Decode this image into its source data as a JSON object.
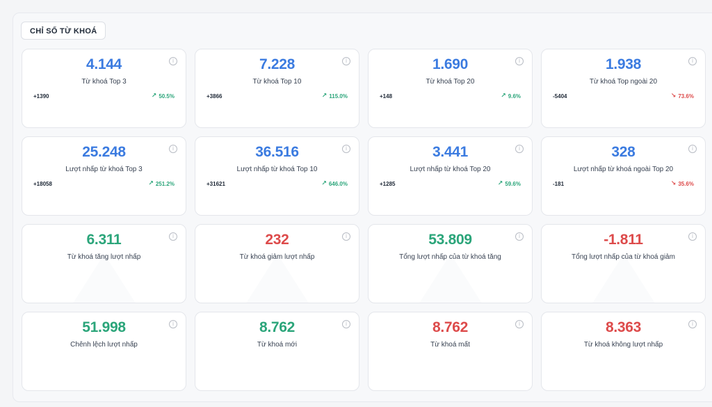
{
  "section": {
    "title": "CHỈ SỐ TỪ KHOÁ"
  },
  "colors": {
    "blue": "#3b7be0",
    "green": "#2ba57a",
    "red": "#dd4b4b"
  },
  "cards": [
    {
      "value": "4.144",
      "label": "Từ khoá Top 3",
      "delta": "+1390",
      "trend": "50.5%",
      "trend_dir": "up",
      "icon": "info-icon"
    },
    {
      "value": "7.228",
      "label": "Từ khoá Top 10",
      "delta": "+3866",
      "trend": "115.0%",
      "trend_dir": "up",
      "icon": "info-icon"
    },
    {
      "value": "1.690",
      "label": "Từ khoá Top 20",
      "delta": "+148",
      "trend": "9.6%",
      "trend_dir": "up",
      "icon": "info-icon"
    },
    {
      "value": "1.938",
      "label": "Từ khoá Top ngoài 20",
      "delta": "-5404",
      "trend": "73.6%",
      "trend_dir": "down",
      "icon": "info-icon"
    },
    {
      "value": "25.248",
      "label": "Lượt nhấp từ khoá Top 3",
      "delta": "+18058",
      "trend": "251.2%",
      "trend_dir": "up",
      "icon": "info-icon"
    },
    {
      "value": "36.516",
      "label": "Lượt nhấp từ khoá Top 10",
      "delta": "+31621",
      "trend": "646.0%",
      "trend_dir": "up",
      "icon": "info-icon"
    },
    {
      "value": "3.441",
      "label": "Lượt nhấp từ khoá Top 20",
      "delta": "+1285",
      "trend": "59.6%",
      "trend_dir": "up",
      "icon": "info-icon"
    },
    {
      "value": "328",
      "label": "Lượt nhấp từ khoá ngoài Top 20",
      "delta": "-181",
      "trend": "35.6%",
      "trend_dir": "down",
      "icon": "info-icon"
    },
    {
      "value": "6.311",
      "label": "Từ khoá tăng lượt nhấp",
      "icon": "info-icon"
    },
    {
      "value": "232",
      "label": "Từ khoá giảm lượt nhấp",
      "icon": "info-icon"
    },
    {
      "value": "53.809",
      "label": "Tổng lượt nhấp của từ khoá tăng",
      "icon": "info-icon"
    },
    {
      "value": "-1.811",
      "label": "Tổng lượt nhấp của từ khoá giảm",
      "icon": "info-icon"
    },
    {
      "value": "51.998",
      "label": "Chênh lệch lượt nhấp",
      "icon": "info-icon"
    },
    {
      "value": "8.762",
      "label": "Từ khoá mới",
      "icon": "info-icon"
    },
    {
      "value": "8.762",
      "label": "Từ khoá mất",
      "icon": "info-icon"
    },
    {
      "value": "8.363",
      "label": "Từ khoá không lượt nhấp",
      "icon": "info-icon"
    }
  ]
}
